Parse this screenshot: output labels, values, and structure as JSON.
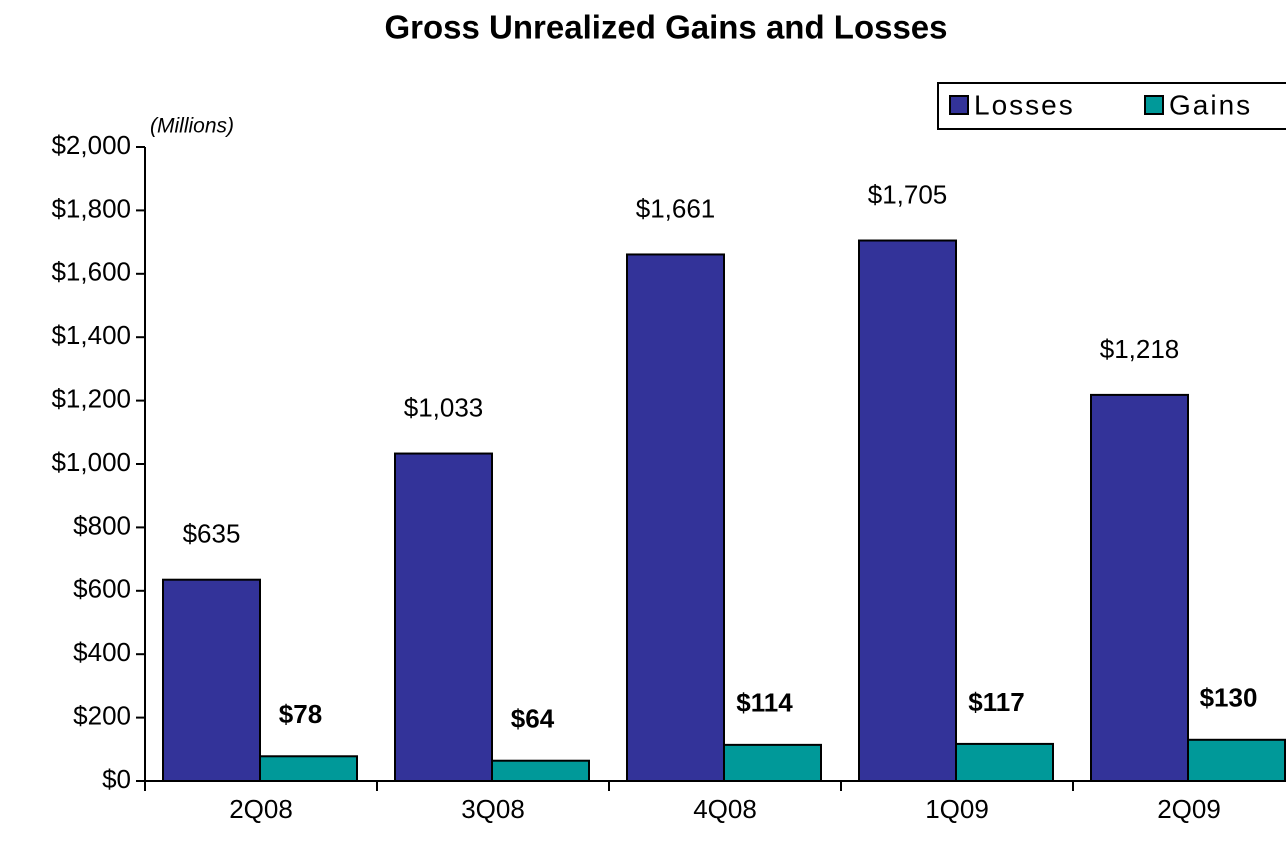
{
  "chart_data": {
    "type": "bar",
    "title": "Gross Unrealized Gains and Losses",
    "y_axis_label": "(Millions)",
    "categories": [
      "2Q08",
      "3Q08",
      "4Q08",
      "1Q09",
      "2Q09"
    ],
    "series": [
      {
        "name": "Losses",
        "color": "#333399",
        "values": [
          635,
          1033,
          1661,
          1705,
          1218
        ],
        "value_labels": [
          "$635",
          "$1,033",
          "$1,661",
          "$1,705",
          "$1,218"
        ]
      },
      {
        "name": "Gains",
        "color": "#009999",
        "values": [
          78,
          64,
          114,
          117,
          130
        ],
        "value_labels": [
          "$78",
          "$64",
          "$114",
          "$117",
          "$130"
        ]
      }
    ],
    "ylim": [
      0,
      2000
    ],
    "yticks": [
      {
        "value": 0,
        "label": "$0"
      },
      {
        "value": 200,
        "label": "$200"
      },
      {
        "value": 400,
        "label": "$400"
      },
      {
        "value": 600,
        "label": "$600"
      },
      {
        "value": 800,
        "label": "$800"
      },
      {
        "value": 1000,
        "label": "$1,000"
      },
      {
        "value": 1200,
        "label": "$1,200"
      },
      {
        "value": 1400,
        "label": "$1,400"
      },
      {
        "value": 1600,
        "label": "$1,600"
      },
      {
        "value": 1800,
        "label": "$1,800"
      },
      {
        "value": 2000,
        "label": "$2,000"
      }
    ],
    "grid": false,
    "legend": "top-right"
  }
}
